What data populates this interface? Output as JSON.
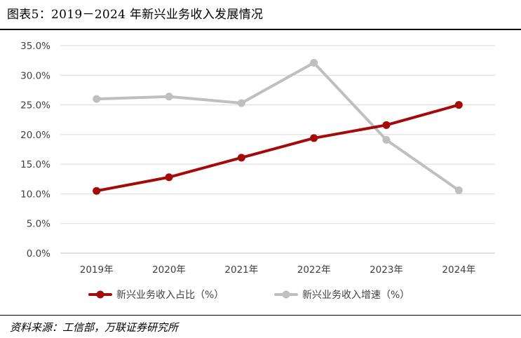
{
  "figure": {
    "title": "图表5：2019－2024 年新兴业务收入发展情况",
    "source": "资料来源：工信部，万联证券研究所"
  },
  "chart_data": {
    "type": "line",
    "title": "",
    "xlabel": "",
    "ylabel": "",
    "categories": [
      "2019年",
      "2020年",
      "2021年",
      "2022年",
      "2023年",
      "2024年"
    ],
    "ylim": [
      0,
      35
    ],
    "yticks": [
      "35.0%",
      "30.0%",
      "25.0%",
      "20.0%",
      "15.0%",
      "10.0%",
      "5.0%",
      "0.0%"
    ],
    "ytick_values": [
      35,
      30,
      25,
      20,
      15,
      10,
      5,
      0
    ],
    "grid": true,
    "legend_position": "bottom",
    "series": [
      {
        "name": "新兴业务收入占比（%）",
        "color": "#A50A0A",
        "values": [
          10.5,
          12.8,
          16.1,
          19.4,
          21.6,
          25.0
        ]
      },
      {
        "name": "新兴业务收入增速（%）",
        "color": "#BFBFBF",
        "values": [
          26.0,
          26.4,
          25.3,
          32.1,
          19.1,
          10.6
        ]
      }
    ]
  }
}
